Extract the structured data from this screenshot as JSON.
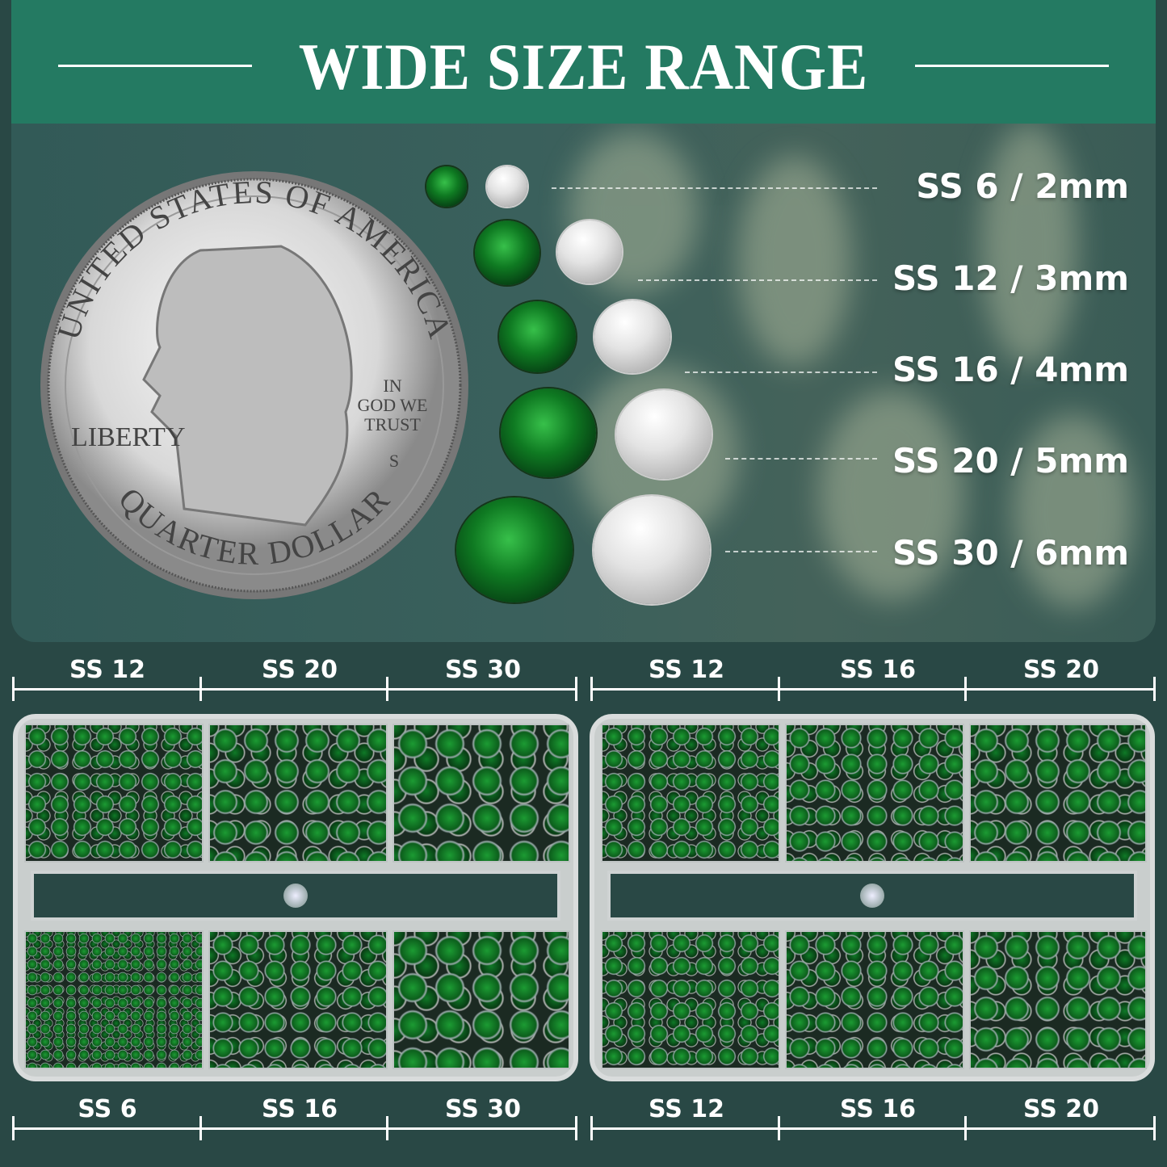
{
  "header": {
    "title": "WIDE SIZE RANGE"
  },
  "coin": {
    "top_text": "UNITED STATES OF AMERICA",
    "motto": [
      "IN",
      "GOD WE",
      "TRUST"
    ],
    "liberty": "LIBERTY",
    "mint": "S",
    "bottom_text": "QUARTER DOLLAR"
  },
  "sizes": [
    {
      "label": "SS 6 / 2mm"
    },
    {
      "label": "SS 12 / 3mm"
    },
    {
      "label": "SS 16 / 4mm"
    },
    {
      "label": "SS 20 / 5mm"
    },
    {
      "label": "SS 30 / 6mm"
    }
  ],
  "box_left": {
    "top_labels": [
      "SS 12",
      "SS 20",
      "SS 30"
    ],
    "bottom_labels": [
      "SS 6",
      "SS 16",
      "SS 30"
    ]
  },
  "box_right": {
    "top_labels": [
      "SS 12",
      "SS 16",
      "SS 20"
    ],
    "bottom_labels": [
      "SS 12",
      "SS 16",
      "SS 20"
    ]
  },
  "colors": {
    "header": "#247a62",
    "background": "#294845",
    "gem": "#0f7a22"
  }
}
